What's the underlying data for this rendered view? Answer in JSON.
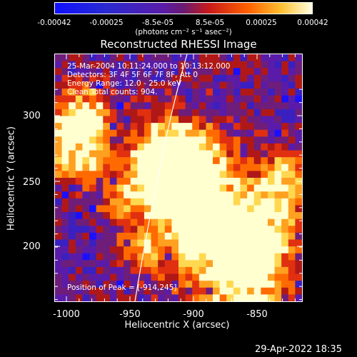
{
  "colorbar": {
    "tick_labels": [
      "-0.00042",
      "-0.00025",
      "-8.5e-05",
      "8.5e-05",
      "0.00025",
      "0.00042"
    ],
    "units_label": "(photons cm⁻² s⁻¹ asec⁻²)"
  },
  "title": "Reconstructed RHESSI Image",
  "annotations": {
    "time_range": "25-Mar-2004 10:11:24.000 to 10:13:12.000",
    "detectors": "Detectors: 3F 4F 5F 6F 7F 8F, Att 0",
    "energy": "Energy Range: 12.0 - 25.0 keV",
    "algorithm": "Clean     Total counts: 904.",
    "peak": "Position of Peak = [-914,245]"
  },
  "axes": {
    "xlabel": "Heliocentric X (arcsec)",
    "ylabel": "Heliocentric Y (arcsec)",
    "x_ticks": [
      "-1000",
      "-950",
      "-900",
      "-850"
    ],
    "y_ticks": [
      "300",
      "250",
      "200"
    ],
    "xlim": [
      -1012,
      -815
    ],
    "ylim": [
      155,
      350
    ]
  },
  "footer_timestamp": "29-Apr-2022 18:35",
  "colors": {
    "background": "#000000",
    "foreground": "#ffffff",
    "colormap": [
      "#0000ff",
      "#5a1aa8",
      "#7b2a8a",
      "#c02020",
      "#ff6a00",
      "#ffd040",
      "#ffffcc"
    ]
  }
}
